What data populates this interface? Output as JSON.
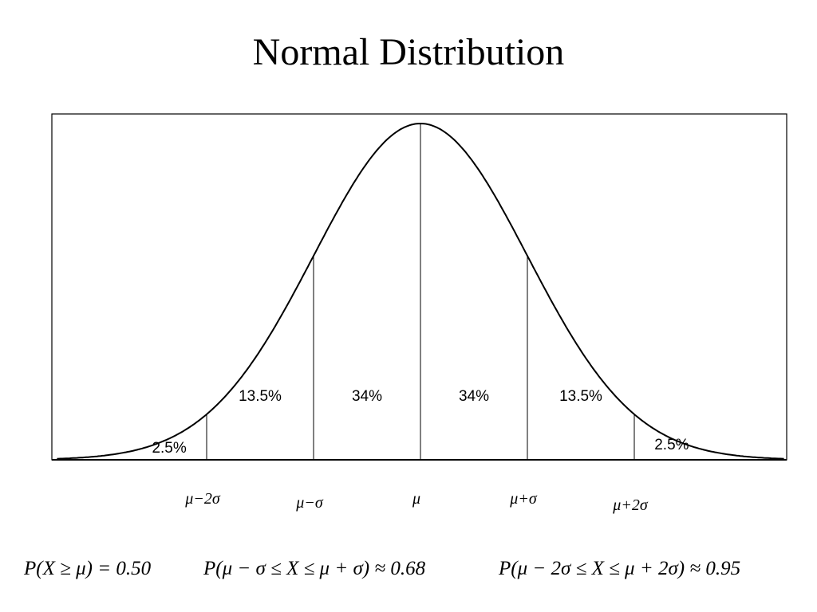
{
  "title": "Normal Distribution",
  "chart_data": {
    "type": "area",
    "title": "Normal Distribution",
    "curve": "standard-normal-density",
    "xlim": [
      -3.4,
      3.4
    ],
    "boundaries": [
      -2,
      -1,
      0,
      1,
      2
    ],
    "tick_labels": [
      "μ−2σ",
      "μ−σ",
      "μ",
      "μ+σ",
      "μ+2σ"
    ],
    "regions": [
      {
        "from": -3.4,
        "to": -2,
        "label": "2.5%",
        "value": 2.5
      },
      {
        "from": -2,
        "to": -1,
        "label": "13.5%",
        "value": 13.5
      },
      {
        "from": -1,
        "to": 0,
        "label": "34%",
        "value": 34
      },
      {
        "from": 0,
        "to": 1,
        "label": "34%",
        "value": 34
      },
      {
        "from": 1,
        "to": 2,
        "label": "13.5%",
        "value": 13.5
      },
      {
        "from": 2,
        "to": 3.4,
        "label": "2.5%",
        "value": 2.5
      }
    ]
  },
  "formulas": [
    "P(X ≥ μ) = 0.50",
    "P(μ − σ ≤ X ≤ μ + σ) ≈ 0.68",
    "P(μ − 2σ ≤ X ≤ μ + 2σ) ≈ 0.95"
  ]
}
